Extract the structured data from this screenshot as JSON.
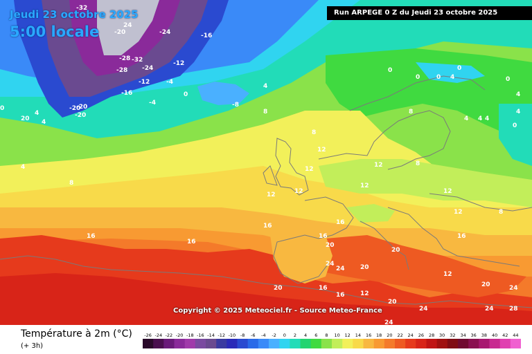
{
  "header": {
    "date": "Jeudi 23 octobre 2025",
    "time": "5:00 locale",
    "run": "Run ARPEGE 0 Z du Jeudi 23 octobre 2025"
  },
  "footer": {
    "copyright": "Copyright © 2025 Meteociel.fr - Source Meteo-France"
  },
  "legend": {
    "title": "Température à 2m (°C)",
    "subtitle": "(+ 3h)",
    "steps": [
      {
        "label": "-26",
        "color": "#2a0a2a"
      },
      {
        "label": "-24",
        "color": "#4a0f4f"
      },
      {
        "label": "-22",
        "color": "#6a1a7a"
      },
      {
        "label": "-20",
        "color": "#8a2a9a"
      },
      {
        "label": "-18",
        "color": "#a03aaa"
      },
      {
        "label": "-16",
        "color": "#7a4aa0"
      },
      {
        "label": "-14",
        "color": "#6a4a90"
      },
      {
        "label": "-12",
        "color": "#3a3aa0"
      },
      {
        "label": "-10",
        "color": "#2a2ab8"
      },
      {
        "label": "-8",
        "color": "#2a4ad0"
      },
      {
        "label": "-6",
        "color": "#2a6ae8"
      },
      {
        "label": "-4",
        "color": "#3a8af8"
      },
      {
        "label": "-2",
        "color": "#4ab0ff"
      },
      {
        "label": "0",
        "color": "#30d4f0"
      },
      {
        "label": "2",
        "color": "#22dcb8"
      },
      {
        "label": "4",
        "color": "#22d470"
      },
      {
        "label": "6",
        "color": "#40da40"
      },
      {
        "label": "8",
        "color": "#8ae24a"
      },
      {
        "label": "10",
        "color": "#c2ee5a"
      },
      {
        "label": "12",
        "color": "#f2f05a"
      },
      {
        "label": "14",
        "color": "#f8da4a"
      },
      {
        "label": "16",
        "color": "#f8b840"
      },
      {
        "label": "18",
        "color": "#f89a32"
      },
      {
        "label": "20",
        "color": "#f47a2a"
      },
      {
        "label": "22",
        "color": "#ee5a22"
      },
      {
        "label": "24",
        "color": "#e63a1c"
      },
      {
        "label": "26",
        "color": "#d82418"
      },
      {
        "label": "28",
        "color": "#c01414"
      },
      {
        "label": "30",
        "color": "#a01010"
      },
      {
        "label": "32",
        "color": "#800c14"
      },
      {
        "label": "34",
        "color": "#700a30"
      },
      {
        "label": "36",
        "color": "#8a1050"
      },
      {
        "label": "38",
        "color": "#a81870"
      },
      {
        "label": "40",
        "color": "#c82a90"
      },
      {
        "label": "42",
        "color": "#e040b0"
      },
      {
        "label": "44",
        "color": "#f060d0"
      }
    ]
  },
  "map_labels": [
    "-20",
    "24",
    "-32",
    "-20",
    "-24",
    "-16",
    "-28",
    "-32",
    "-28",
    "-24",
    "-16",
    "-12",
    "-20",
    "-12",
    "-4",
    "-8",
    "-4",
    "0",
    "4",
    "-20",
    "0",
    "20",
    "4",
    "4",
    "8",
    "4",
    "8",
    "12",
    "8",
    "12",
    "12",
    "12",
    "16",
    "16",
    "16",
    "16",
    "12",
    "8",
    "4",
    "0",
    "4",
    "8",
    "12",
    "16",
    "20",
    "24",
    "24",
    "20",
    "16",
    "20",
    "24",
    "24",
    "20",
    "12",
    "16",
    "0",
    "0",
    "0",
    "0",
    "4",
    "4",
    "0",
    "4",
    "4",
    "8",
    "12",
    "12",
    "16",
    "20",
    "12",
    "24",
    "20",
    "24",
    "28"
  ]
}
